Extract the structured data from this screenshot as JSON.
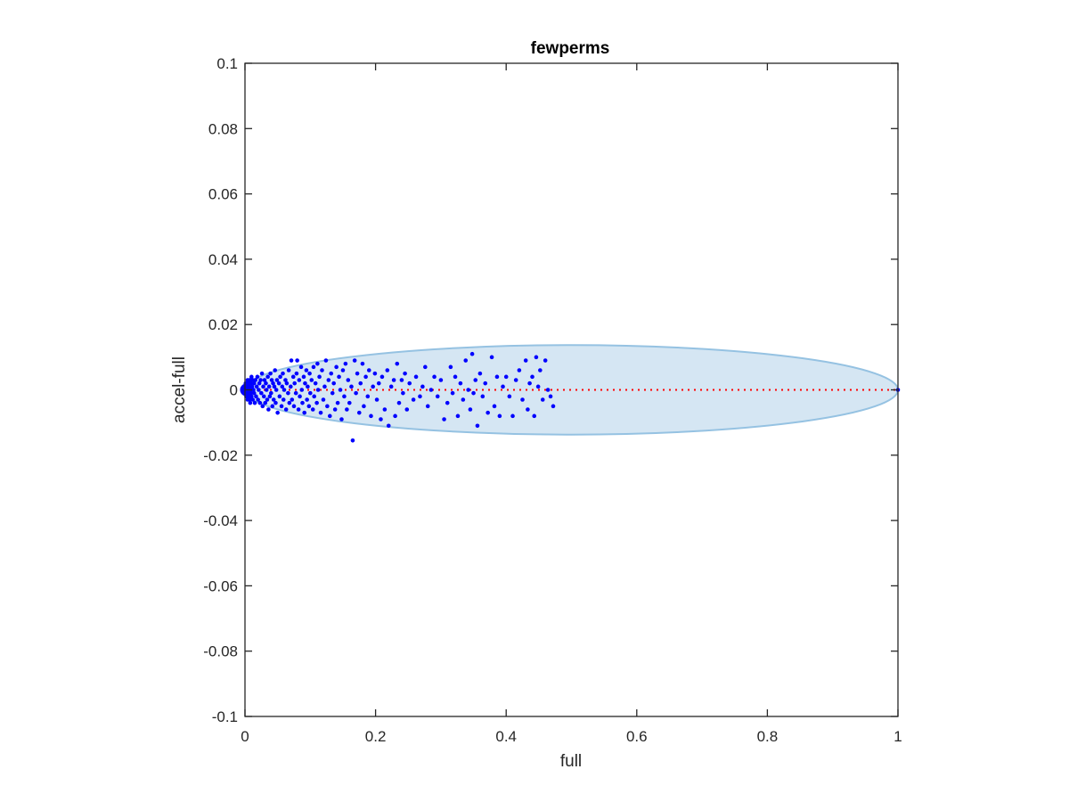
{
  "chart_data": {
    "type": "scatter",
    "title": "fewperms",
    "xlabel": "full",
    "ylabel": "accel-full",
    "xlim": [
      0,
      1
    ],
    "ylim": [
      -0.1,
      0.1
    ],
    "grid": false,
    "box": true,
    "x_ticks": [
      0,
      0.2,
      0.4,
      0.6,
      0.8,
      1
    ],
    "x_tick_labels": [
      "0",
      "0.2",
      "0.4",
      "0.6",
      "0.8",
      "1"
    ],
    "y_ticks": [
      0.1,
      0.08,
      0.06,
      0.04,
      0.02,
      0,
      -0.02,
      -0.04,
      -0.06,
      -0.08,
      -0.1
    ],
    "y_tick_labels": [
      "0.1",
      "0.08",
      "0.06",
      "0.04",
      "0.02",
      "0",
      "-0.02",
      "-0.04",
      "-0.06",
      "-0.08",
      "-0.1"
    ],
    "reference_line": {
      "y": 0,
      "x_range": [
        0,
        1
      ],
      "style": "dotted",
      "color": "#ff0000"
    },
    "ellipse": {
      "center_x": 0.5,
      "center_y": 0,
      "radius_x": 0.5,
      "radius_y": 0.0137,
      "fill_color": "#d5e6f3",
      "stroke_color": "#95c2e2"
    },
    "marker_color": "#0000ff",
    "series": [
      {
        "points": [
          [
            0.001,
            0.002
          ],
          [
            0.002,
            -0.002
          ],
          [
            0.003,
            0.001
          ],
          [
            0.003,
            -0.001
          ],
          [
            0.004,
            0.003
          ],
          [
            0.004,
            -0.003
          ],
          [
            0.005,
            0.0
          ],
          [
            0.005,
            0.002
          ],
          [
            0.006,
            -0.002
          ],
          [
            0.006,
            0.001
          ],
          [
            0.007,
            0.003
          ],
          [
            0.007,
            -0.003
          ],
          [
            0.008,
            0.0
          ],
          [
            0.008,
            -0.004
          ],
          [
            0.009,
            0.002
          ],
          [
            0.009,
            -0.001
          ],
          [
            0.01,
            0.004
          ],
          [
            0.01,
            -0.002
          ],
          [
            0.011,
            0.001
          ],
          [
            0.012,
            -0.003
          ],
          [
            0.012,
            0.003
          ],
          [
            0.013,
            0.0
          ],
          [
            0.014,
            -0.001
          ],
          [
            0.014,
            0.002
          ],
          [
            0.015,
            -0.004
          ],
          [
            0.016,
            0.003
          ],
          [
            0.017,
            -0.002
          ],
          [
            0.018,
            0.001
          ],
          [
            0.019,
            0.004
          ],
          [
            0.02,
            -0.003
          ],
          [
            0.021,
            0.0
          ],
          [
            0.022,
            0.002
          ],
          [
            0.023,
            -0.004
          ],
          [
            0.024,
            0.003
          ],
          [
            0.025,
            -0.001
          ],
          [
            0.026,
            0.005
          ],
          [
            0.027,
            -0.005
          ],
          [
            0.028,
            0.001
          ],
          [
            0.029,
            -0.002
          ],
          [
            0.03,
            0.003
          ],
          [
            0.031,
            -0.004
          ],
          [
            0.032,
            0.002
          ],
          [
            0.033,
            0.0
          ],
          [
            0.034,
            -0.003
          ],
          [
            0.035,
            0.004
          ],
          [
            0.036,
            -0.006
          ],
          [
            0.037,
            0.001
          ],
          [
            0.038,
            -0.002
          ],
          [
            0.039,
            0.005
          ],
          [
            0.04,
            -0.001
          ],
          [
            0.041,
            0.003
          ],
          [
            0.042,
            -0.005
          ],
          [
            0.043,
            0.002
          ],
          [
            0.044,
            -0.003
          ],
          [
            0.045,
            0.001
          ],
          [
            0.046,
            0.006
          ],
          [
            0.047,
            -0.004
          ],
          [
            0.048,
            0.0
          ],
          [
            0.049,
            0.003
          ],
          [
            0.05,
            -0.007
          ],
          [
            0.052,
            0.002
          ],
          [
            0.053,
            -0.002
          ],
          [
            0.054,
            0.004
          ],
          [
            0.056,
            -0.005
          ],
          [
            0.057,
            0.001
          ],
          [
            0.058,
            0.005
          ],
          [
            0.059,
            -0.003
          ],
          [
            0.06,
            0.0
          ],
          [
            0.062,
            0.003
          ],
          [
            0.063,
            -0.006
          ],
          [
            0.064,
            0.002
          ],
          [
            0.066,
            -0.001
          ],
          [
            0.067,
            0.006
          ],
          [
            0.068,
            -0.004
          ],
          [
            0.07,
            0.001
          ],
          [
            0.071,
            0.009
          ],
          [
            0.072,
            -0.003
          ],
          [
            0.074,
            0.004
          ],
          [
            0.075,
            -0.005
          ],
          [
            0.076,
            0.002
          ],
          [
            0.078,
            -0.001
          ],
          [
            0.079,
            0.005
          ],
          [
            0.08,
            0.009
          ],
          [
            0.082,
            -0.006
          ],
          [
            0.083,
            0.003
          ],
          [
            0.084,
            -0.002
          ],
          [
            0.086,
            0.007
          ],
          [
            0.087,
            0.0
          ],
          [
            0.088,
            -0.004
          ],
          [
            0.09,
            0.004
          ],
          [
            0.091,
            -0.007
          ],
          [
            0.092,
            0.002
          ],
          [
            0.094,
            0.006
          ],
          [
            0.095,
            -0.003
          ],
          [
            0.096,
            0.001
          ],
          [
            0.098,
            -0.005
          ],
          [
            0.099,
            0.005
          ],
          [
            0.1,
            -0.001
          ],
          [
            0.102,
            0.003
          ],
          [
            0.104,
            -0.006
          ],
          [
            0.105,
            0.007
          ],
          [
            0.106,
            -0.002
          ],
          [
            0.108,
            0.002
          ],
          [
            0.11,
            -0.004
          ],
          [
            0.111,
            0.008
          ],
          [
            0.112,
            0.0
          ],
          [
            0.114,
            0.004
          ],
          [
            0.116,
            -0.007
          ],
          [
            0.118,
            0.006
          ],
          [
            0.12,
            -0.003
          ],
          [
            0.122,
            0.001
          ],
          [
            0.124,
            0.009
          ],
          [
            0.126,
            -0.005
          ],
          [
            0.128,
            0.003
          ],
          [
            0.13,
            -0.008
          ],
          [
            0.132,
            0.005
          ],
          [
            0.134,
            -0.001
          ],
          [
            0.136,
            0.002
          ],
          [
            0.138,
            -0.006
          ],
          [
            0.14,
            0.007
          ],
          [
            0.142,
            -0.004
          ],
          [
            0.144,
            0.004
          ],
          [
            0.146,
            0.0
          ],
          [
            0.148,
            -0.009
          ],
          [
            0.15,
            0.006
          ],
          [
            0.152,
            -0.002
          ],
          [
            0.154,
            0.008
          ],
          [
            0.156,
            -0.006
          ],
          [
            0.158,
            0.003
          ],
          [
            0.16,
            -0.004
          ],
          [
            0.163,
            0.001
          ],
          [
            0.165,
            -0.0155
          ],
          [
            0.168,
            0.009
          ],
          [
            0.17,
            -0.001
          ],
          [
            0.172,
            0.005
          ],
          [
            0.175,
            -0.007
          ],
          [
            0.177,
            0.002
          ],
          [
            0.18,
            0.008
          ],
          [
            0.182,
            -0.005
          ],
          [
            0.185,
            0.004
          ],
          [
            0.188,
            -0.002
          ],
          [
            0.19,
            0.006
          ],
          [
            0.193,
            -0.008
          ],
          [
            0.196,
            0.001
          ],
          [
            0.199,
            0.005
          ],
          [
            0.202,
            -0.003
          ],
          [
            0.205,
            0.002
          ],
          [
            0.208,
            -0.009
          ],
          [
            0.21,
            0.004
          ],
          [
            0.214,
            -0.006
          ],
          [
            0.218,
            0.006
          ],
          [
            0.22,
            -0.011
          ],
          [
            0.224,
            0.001
          ],
          [
            0.228,
            0.003
          ],
          [
            0.23,
            -0.008
          ],
          [
            0.233,
            0.008
          ],
          [
            0.236,
            -0.004
          ],
          [
            0.24,
            0.003
          ],
          [
            0.242,
            -0.001
          ],
          [
            0.245,
            0.005
          ],
          [
            0.248,
            -0.006
          ],
          [
            0.252,
            0.002
          ],
          [
            0.258,
            -0.003
          ],
          [
            0.262,
            0.004
          ],
          [
            0.268,
            -0.002
          ],
          [
            0.272,
            0.001
          ],
          [
            0.276,
            0.007
          ],
          [
            0.28,
            -0.005
          ],
          [
            0.285,
            0.0
          ],
          [
            0.29,
            0.004
          ],
          [
            0.295,
            -0.002
          ],
          [
            0.3,
            0.003
          ],
          [
            0.305,
            -0.009
          ],
          [
            0.31,
            -0.004
          ],
          [
            0.315,
            0.007
          ],
          [
            0.318,
            -0.001
          ],
          [
            0.322,
            0.004
          ],
          [
            0.326,
            -0.008
          ],
          [
            0.33,
            0.002
          ],
          [
            0.334,
            -0.003
          ],
          [
            0.338,
            0.009
          ],
          [
            0.342,
            0.0
          ],
          [
            0.345,
            -0.006
          ],
          [
            0.348,
            0.011
          ],
          [
            0.35,
            -0.001
          ],
          [
            0.353,
            0.003
          ],
          [
            0.356,
            -0.011
          ],
          [
            0.36,
            0.005
          ],
          [
            0.364,
            -0.002
          ],
          [
            0.368,
            0.002
          ],
          [
            0.372,
            -0.007
          ],
          [
            0.378,
            0.01
          ],
          [
            0.382,
            -0.005
          ],
          [
            0.386,
            0.004
          ],
          [
            0.39,
            -0.008
          ],
          [
            0.395,
            0.001
          ],
          [
            0.4,
            0.004
          ],
          [
            0.405,
            -0.002
          ],
          [
            0.41,
            -0.008
          ],
          [
            0.415,
            0.003
          ],
          [
            0.42,
            0.006
          ],
          [
            0.425,
            -0.003
          ],
          [
            0.43,
            0.009
          ],
          [
            0.433,
            -0.006
          ],
          [
            0.436,
            0.002
          ],
          [
            0.44,
            0.004
          ],
          [
            0.443,
            -0.008
          ],
          [
            0.446,
            0.01
          ],
          [
            0.449,
            0.001
          ],
          [
            0.452,
            0.006
          ],
          [
            0.456,
            -0.003
          ],
          [
            0.46,
            0.009
          ],
          [
            0.464,
            0.0
          ],
          [
            0.468,
            -0.002
          ],
          [
            0.472,
            -0.005
          ],
          [
            1.0,
            0.0
          ]
        ]
      }
    ]
  }
}
